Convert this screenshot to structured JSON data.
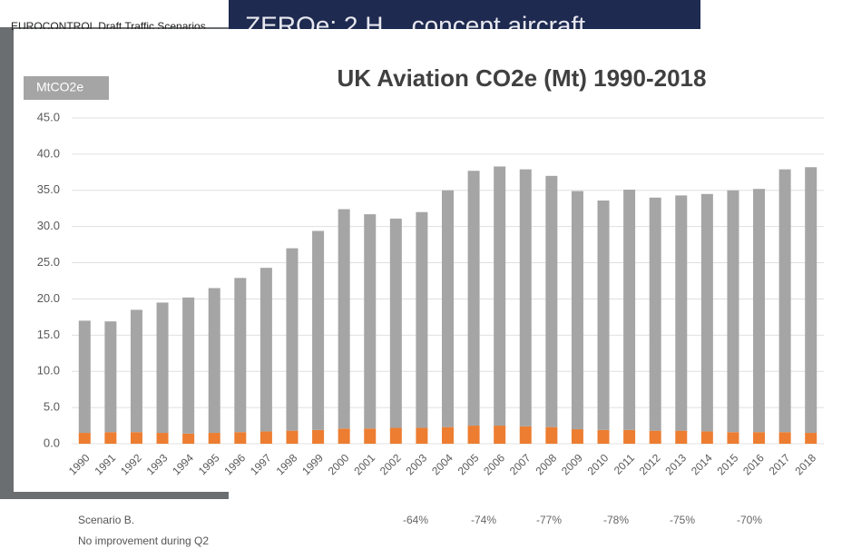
{
  "background": {
    "header": "EUROCONTROL Draft Traffic Scenarios",
    "slide_title": "ZEROe: 2 H... concept aircraft"
  },
  "chart_data": {
    "type": "stacked-bar",
    "title": "UK Aviation CO2e (Mt) 1990-2018",
    "y_label": "MtCO2e",
    "categories": [
      "1990",
      "1991",
      "1992",
      "1993",
      "1994",
      "1995",
      "1996",
      "1997",
      "1998",
      "1999",
      "2000",
      "2001",
      "2002",
      "2003",
      "2004",
      "2005",
      "2006",
      "2007",
      "2008",
      "2009",
      "2010",
      "2011",
      "2012",
      "2013",
      "2014",
      "2015",
      "2016",
      "2017",
      "2018"
    ],
    "series": [
      {
        "color": "#ed7d31",
        "values": [
          1.5,
          1.6,
          1.6,
          1.5,
          1.4,
          1.5,
          1.6,
          1.7,
          1.8,
          1.9,
          2.1,
          2.1,
          2.2,
          2.2,
          2.3,
          2.5,
          2.5,
          2.4,
          2.3,
          2.0,
          1.9,
          1.9,
          1.8,
          1.8,
          1.7,
          1.6,
          1.6,
          1.6,
          1.5
        ]
      },
      {
        "color": "#a5a5a5",
        "values": [
          15.5,
          15.3,
          16.9,
          18.0,
          18.8,
          20.0,
          21.3,
          22.6,
          25.2,
          27.5,
          30.3,
          29.6,
          28.9,
          29.8,
          32.7,
          35.2,
          35.8,
          35.5,
          34.7,
          32.9,
          31.7,
          33.2,
          32.2,
          32.5,
          32.8,
          33.4,
          33.6,
          36.3,
          36.7
        ]
      }
    ],
    "ylim": [
      0,
      45
    ],
    "yticks": [
      {
        "value": 0,
        "label": "0.0"
      },
      {
        "value": 5,
        "label": "5.0"
      },
      {
        "value": 10,
        "label": "10.0"
      },
      {
        "value": 15,
        "label": "15.0"
      },
      {
        "value": 20,
        "label": "20.0"
      },
      {
        "value": 25,
        "label": "25.0"
      },
      {
        "value": 30,
        "label": "30.0"
      },
      {
        "value": 35,
        "label": "35.0"
      },
      {
        "value": 40,
        "label": "40.0"
      },
      {
        "value": 45,
        "label": "45.0"
      }
    ],
    "grid": true
  },
  "footer": {
    "scenario": "Scenario B.",
    "note": "No improvement during Q2",
    "reductions": [
      "-64%",
      "-74%",
      "-77%",
      "-78%",
      "-75%",
      "-70%"
    ]
  }
}
